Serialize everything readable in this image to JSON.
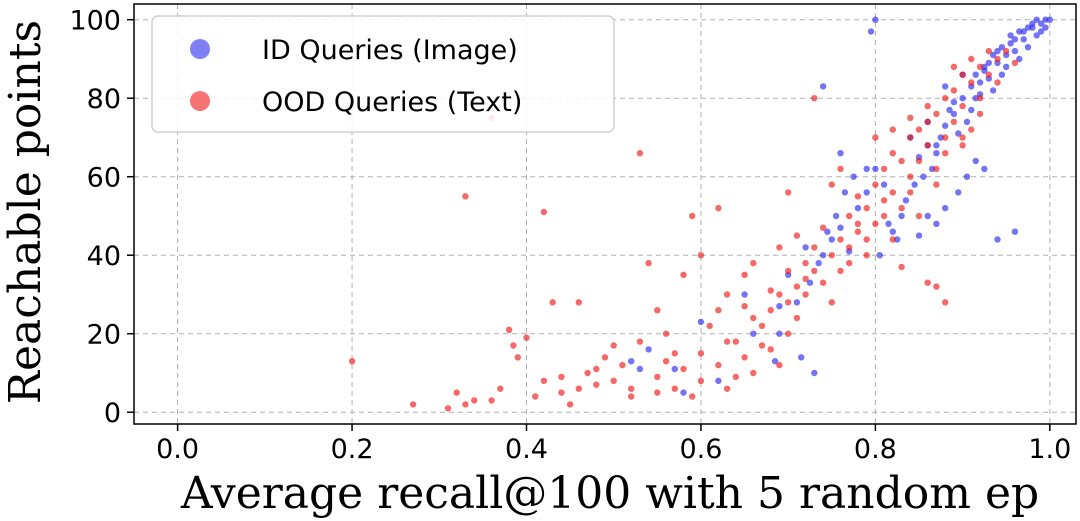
{
  "chart_data": {
    "type": "scatter",
    "xlabel": "Average recall@100 with 5 random ep",
    "ylabel": "Reachable points",
    "xlim": [
      -0.05,
      1.03
    ],
    "ylim": [
      -3,
      104
    ],
    "xticks": [
      "0.0",
      "0.2",
      "0.4",
      "0.6",
      "0.8",
      "1.0"
    ],
    "yticks": [
      "0",
      "20",
      "40",
      "60",
      "80",
      "100"
    ],
    "grid": true,
    "legend_position": "top-left",
    "series": [
      {
        "name": "ID Queries (Image)",
        "color": "#2a2af0",
        "points": [
          [
            0.8,
            100
          ],
          [
            0.795,
            97
          ],
          [
            0.96,
            46
          ],
          [
            0.94,
            44
          ],
          [
            0.76,
            66
          ],
          [
            0.74,
            83
          ],
          [
            0.73,
            10
          ],
          [
            0.715,
            14
          ],
          [
            0.685,
            13
          ],
          [
            0.69,
            20
          ],
          [
            0.65,
            30
          ],
          [
            0.6,
            23
          ],
          [
            0.57,
            11
          ],
          [
            0.53,
            11
          ],
          [
            0.52,
            13
          ],
          [
            0.54,
            16
          ],
          [
            0.58,
            5
          ],
          [
            0.62,
            8
          ],
          [
            0.66,
            20
          ],
          [
            0.69,
            27
          ],
          [
            0.7,
            35
          ],
          [
            0.71,
            28
          ],
          [
            0.72,
            42
          ],
          [
            0.74,
            40
          ],
          [
            0.75,
            44
          ],
          [
            0.76,
            47
          ],
          [
            0.77,
            41
          ],
          [
            0.78,
            52
          ],
          [
            0.79,
            56
          ],
          [
            0.8,
            62
          ],
          [
            0.81,
            58
          ],
          [
            0.82,
            46
          ],
          [
            0.83,
            50
          ],
          [
            0.84,
            70
          ],
          [
            0.85,
            65
          ],
          [
            0.86,
            74
          ],
          [
            0.87,
            68
          ],
          [
            0.88,
            83
          ],
          [
            0.89,
            79
          ],
          [
            0.9,
            86
          ],
          [
            0.91,
            77
          ],
          [
            0.92,
            84
          ],
          [
            0.93,
            89
          ],
          [
            0.94,
            92
          ],
          [
            0.95,
            88
          ],
          [
            0.96,
            95
          ],
          [
            0.97,
            97
          ],
          [
            0.98,
            98
          ],
          [
            0.99,
            99
          ],
          [
            1.0,
            100
          ],
          [
            0.995,
            98
          ],
          [
            0.985,
            96
          ],
          [
            0.975,
            93
          ],
          [
            0.965,
            90
          ],
          [
            0.955,
            94
          ],
          [
            0.945,
            86
          ],
          [
            0.935,
            82
          ],
          [
            0.925,
            88
          ],
          [
            0.915,
            80
          ],
          [
            0.905,
            74
          ],
          [
            0.895,
            71
          ],
          [
            0.885,
            77
          ],
          [
            0.875,
            70
          ],
          [
            0.865,
            62
          ],
          [
            0.855,
            60
          ],
          [
            0.845,
            58
          ],
          [
            0.835,
            54
          ],
          [
            0.825,
            44
          ],
          [
            0.815,
            48
          ],
          [
            0.805,
            40
          ],
          [
            0.905,
            60
          ],
          [
            0.915,
            64
          ],
          [
            0.925,
            62
          ],
          [
            0.895,
            56
          ],
          [
            0.88,
            52
          ],
          [
            0.87,
            48
          ],
          [
            0.86,
            50
          ],
          [
            0.85,
            45
          ],
          [
            0.79,
            62
          ],
          [
            0.775,
            60
          ],
          [
            0.765,
            56
          ],
          [
            0.755,
            50
          ],
          [
            0.745,
            46
          ],
          [
            0.735,
            38
          ],
          [
            0.725,
            33
          ],
          [
            0.995,
            100
          ],
          [
            0.99,
            97
          ],
          [
            0.98,
            99
          ],
          [
            0.97,
            95
          ],
          [
            0.96,
            92
          ],
          [
            0.95,
            91
          ],
          [
            0.94,
            89
          ],
          [
            0.93,
            85
          ],
          [
            0.92,
            81
          ],
          [
            0.91,
            83
          ],
          [
            0.9,
            80
          ],
          [
            0.89,
            76
          ],
          [
            0.88,
            73
          ],
          [
            0.87,
            66
          ],
          [
            0.86,
            68
          ],
          [
            0.985,
            100
          ],
          [
            0.975,
            98
          ],
          [
            0.965,
            97
          ],
          [
            0.955,
            96
          ],
          [
            0.945,
            93
          ],
          [
            0.935,
            91
          ],
          [
            0.925,
            87
          ],
          [
            0.915,
            86
          ]
        ]
      },
      {
        "name": "OOD Queries (Text)",
        "color": "#f01818",
        "points": [
          [
            0.2,
            13
          ],
          [
            0.27,
            2
          ],
          [
            0.31,
            1
          ],
          [
            0.32,
            5
          ],
          [
            0.33,
            2
          ],
          [
            0.34,
            3
          ],
          [
            0.33,
            55
          ],
          [
            0.36,
            75
          ],
          [
            0.36,
            3
          ],
          [
            0.37,
            6
          ],
          [
            0.38,
            21
          ],
          [
            0.385,
            17
          ],
          [
            0.39,
            14
          ],
          [
            0.4,
            19
          ],
          [
            0.41,
            4
          ],
          [
            0.42,
            8
          ],
          [
            0.42,
            51
          ],
          [
            0.43,
            28
          ],
          [
            0.44,
            5
          ],
          [
            0.45,
            2
          ],
          [
            0.46,
            6
          ],
          [
            0.46,
            28
          ],
          [
            0.47,
            10
          ],
          [
            0.48,
            7
          ],
          [
            0.49,
            14
          ],
          [
            0.5,
            17
          ],
          [
            0.5,
            8
          ],
          [
            0.51,
            12
          ],
          [
            0.52,
            6
          ],
          [
            0.53,
            66
          ],
          [
            0.53,
            18
          ],
          [
            0.54,
            38
          ],
          [
            0.55,
            9
          ],
          [
            0.55,
            26
          ],
          [
            0.56,
            13
          ],
          [
            0.57,
            6
          ],
          [
            0.58,
            35
          ],
          [
            0.58,
            11
          ],
          [
            0.59,
            50
          ],
          [
            0.6,
            15
          ],
          [
            0.6,
            8
          ],
          [
            0.61,
            22
          ],
          [
            0.62,
            12
          ],
          [
            0.62,
            52
          ],
          [
            0.63,
            30
          ],
          [
            0.63,
            18
          ],
          [
            0.64,
            9
          ],
          [
            0.65,
            27
          ],
          [
            0.65,
            14
          ],
          [
            0.66,
            38
          ],
          [
            0.66,
            10
          ],
          [
            0.67,
            22
          ],
          [
            0.67,
            17
          ],
          [
            0.68,
            31
          ],
          [
            0.68,
            26
          ],
          [
            0.69,
            12
          ],
          [
            0.69,
            42
          ],
          [
            0.7,
            36
          ],
          [
            0.7,
            20
          ],
          [
            0.7,
            28
          ],
          [
            0.71,
            45
          ],
          [
            0.71,
            24
          ],
          [
            0.72,
            30
          ],
          [
            0.72,
            38
          ],
          [
            0.73,
            80
          ],
          [
            0.73,
            42
          ],
          [
            0.74,
            33
          ],
          [
            0.74,
            47
          ],
          [
            0.75,
            40
          ],
          [
            0.75,
            28
          ],
          [
            0.76,
            62
          ],
          [
            0.76,
            44
          ],
          [
            0.77,
            50
          ],
          [
            0.77,
            38
          ],
          [
            0.78,
            55
          ],
          [
            0.78,
            46
          ],
          [
            0.79,
            52
          ],
          [
            0.79,
            44
          ],
          [
            0.8,
            58
          ],
          [
            0.8,
            48
          ],
          [
            0.81,
            62
          ],
          [
            0.81,
            54
          ],
          [
            0.82,
            66
          ],
          [
            0.82,
            56
          ],
          [
            0.83,
            64
          ],
          [
            0.83,
            52
          ],
          [
            0.84,
            70
          ],
          [
            0.84,
            60
          ],
          [
            0.85,
            72
          ],
          [
            0.85,
            64
          ],
          [
            0.86,
            74
          ],
          [
            0.86,
            68
          ],
          [
            0.87,
            76
          ],
          [
            0.87,
            58
          ],
          [
            0.88,
            80
          ],
          [
            0.88,
            70
          ],
          [
            0.89,
            82
          ],
          [
            0.89,
            74
          ],
          [
            0.9,
            86
          ],
          [
            0.9,
            78
          ],
          [
            0.91,
            84
          ],
          [
            0.91,
            72
          ],
          [
            0.92,
            88
          ],
          [
            0.92,
            80
          ],
          [
            0.93,
            86
          ],
          [
            0.94,
            90
          ],
          [
            0.95,
            92
          ],
          [
            0.96,
            89
          ],
          [
            0.87,
            32
          ],
          [
            0.86,
            33
          ],
          [
            0.88,
            28
          ],
          [
            0.83,
            37
          ],
          [
            0.7,
            56
          ],
          [
            0.75,
            58
          ],
          [
            0.8,
            70
          ],
          [
            0.65,
            35
          ],
          [
            0.6,
            40
          ],
          [
            0.56,
            20
          ],
          [
            0.52,
            4
          ],
          [
            0.48,
            11
          ],
          [
            0.44,
            9
          ],
          [
            0.57,
            15
          ],
          [
            0.62,
            26
          ],
          [
            0.68,
            16
          ],
          [
            0.72,
            34
          ],
          [
            0.76,
            36
          ],
          [
            0.79,
            40
          ],
          [
            0.82,
            44
          ],
          [
            0.85,
            50
          ],
          [
            0.88,
            66
          ],
          [
            0.9,
            70
          ],
          [
            0.92,
            76
          ],
          [
            0.94,
            84
          ],
          [
            0.84,
            75
          ],
          [
            0.82,
            72
          ],
          [
            0.86,
            78
          ],
          [
            0.89,
            88
          ],
          [
            0.91,
            90
          ],
          [
            0.93,
            92
          ],
          [
            0.63,
            6
          ],
          [
            0.59,
            4
          ],
          [
            0.55,
            5
          ],
          [
            0.64,
            18
          ],
          [
            0.66,
            24
          ],
          [
            0.69,
            30
          ],
          [
            0.71,
            32
          ],
          [
            0.73,
            36
          ],
          [
            0.77,
            42
          ],
          [
            0.78,
            48
          ],
          [
            0.81,
            50
          ],
          [
            0.84,
            56
          ],
          [
            0.87,
            62
          ],
          [
            0.9,
            68
          ]
        ]
      }
    ]
  }
}
